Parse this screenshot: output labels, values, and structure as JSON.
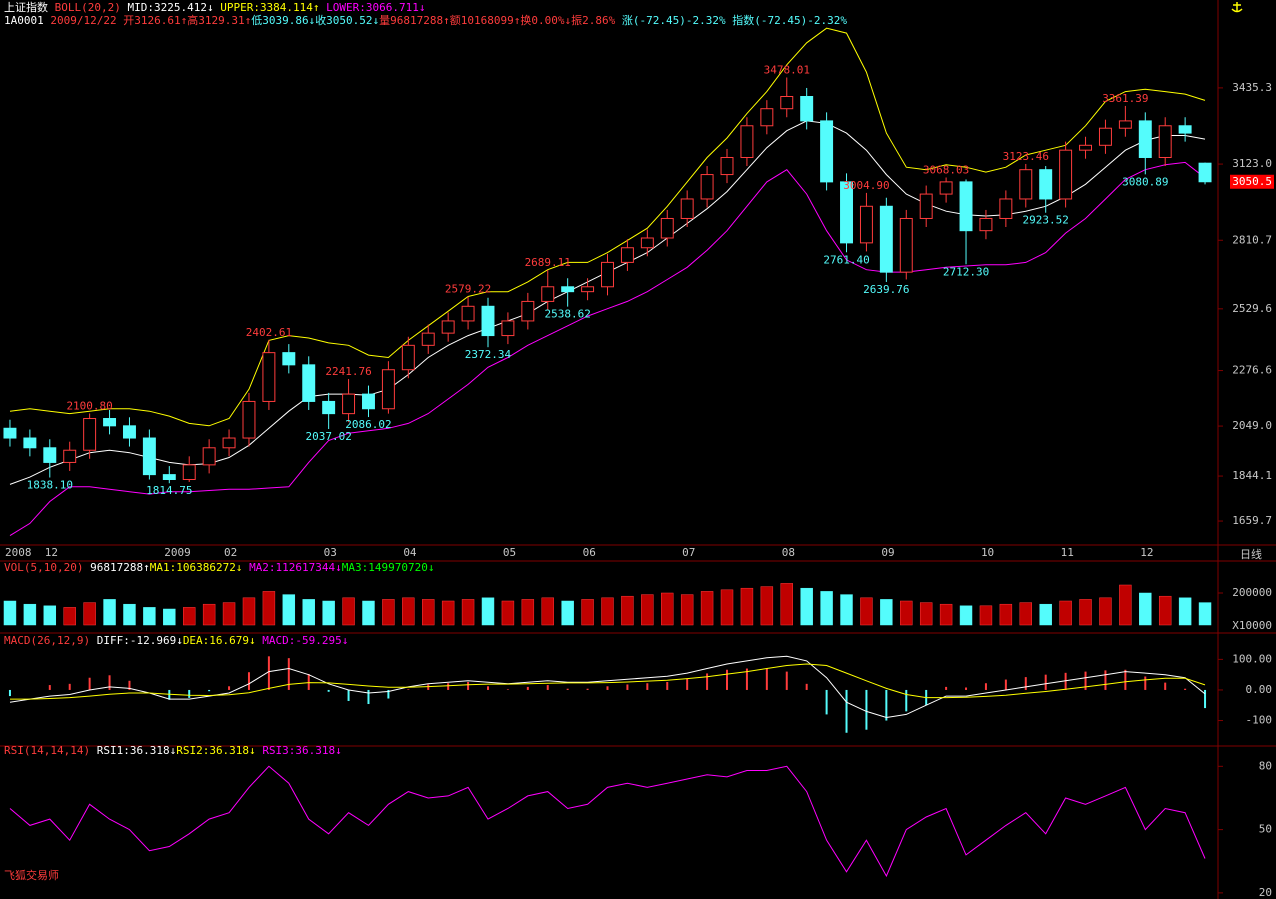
{
  "quote": [
    "1A0001",
    "2009/12/22",
    "开3126.61↑",
    "高3129.31↑",
    "低3039.86↓",
    "收3050.52↓",
    "量96817288↑",
    "额10168099↑",
    "换0.00%↓",
    "振2.86%",
    "涨(-72.45)-2.32%",
    "指数(-72.45)-2.32%"
  ],
  "footer": "飞狐交易师",
  "chart_data": [
    {
      "type": "candlestick",
      "title": "上证指数",
      "header_texts": [
        "BOLL(20,2)",
        "MID:3225.412↓",
        "UPPER:3384.114↑",
        "LOWER:3066.711↓"
      ],
      "x_label": "日线",
      "categories": [
        "2008",
        null,
        "12",
        null,
        null,
        null,
        null,
        null,
        "2009",
        null,
        null,
        "02",
        null,
        null,
        null,
        null,
        "03",
        null,
        null,
        null,
        "04",
        null,
        null,
        null,
        null,
        "05",
        null,
        null,
        null,
        "06",
        null,
        null,
        null,
        null,
        "07",
        null,
        null,
        null,
        null,
        "08",
        null,
        null,
        null,
        null,
        "09",
        null,
        null,
        null,
        null,
        "10",
        null,
        null,
        null,
        "11",
        null,
        null,
        null,
        "12",
        null,
        null,
        null
      ],
      "open": [
        2040,
        2000,
        1960,
        1900,
        1950,
        2080,
        2050,
        2000,
        1850,
        1830,
        1890,
        1960,
        2000,
        2150,
        2350,
        2300,
        2150,
        2100,
        2180,
        2120,
        2280,
        2380,
        2430,
        2480,
        2540,
        2420,
        2480,
        2560,
        2620,
        2600,
        2620,
        2720,
        2780,
        2820,
        2900,
        2980,
        3080,
        3150,
        3280,
        3350,
        3400,
        3300,
        3050,
        2800,
        2950,
        2680,
        2900,
        3000,
        3050,
        2850,
        2900,
        2980,
        3100,
        2980,
        3180,
        3200,
        3270,
        3300,
        3150,
        3280,
        3126.61
      ],
      "high": [
        2075,
        2035,
        1995,
        1985,
        2100.8,
        2115,
        2085,
        2035,
        1885,
        1925,
        1995,
        2035,
        2185,
        2402.61,
        2385,
        2335,
        2185,
        2241.76,
        2215,
        2315,
        2415,
        2465,
        2515,
        2579.22,
        2575,
        2515,
        2595,
        2689.11,
        2655,
        2655,
        2755,
        2815,
        2855,
        2935,
        3015,
        3115,
        3185,
        3315,
        3385,
        3478.01,
        3435,
        3335,
        3085,
        3004.9,
        2985,
        2935,
        3035,
        3068.03,
        3060,
        2935,
        3015,
        3123.46,
        3115,
        3215,
        3235,
        3305,
        3361.39,
        3335,
        3315,
        3315,
        3129.31
      ],
      "low": [
        1965,
        1925,
        1838.1,
        1865,
        1915,
        2015,
        1965,
        1830,
        1814.75,
        1820,
        1855,
        1925,
        1965,
        2115,
        2265,
        2115,
        2037.02,
        2065,
        2086.02,
        2100,
        2245,
        2345,
        2395,
        2445,
        2372.34,
        2385,
        2445,
        2525,
        2538.62,
        2565,
        2585,
        2685,
        2745,
        2785,
        2865,
        2945,
        3045,
        3115,
        3245,
        3315,
        3265,
        3015,
        2761.4,
        2765,
        2639.76,
        2650,
        2865,
        2965,
        2712.3,
        2815,
        2865,
        2945,
        2923.52,
        2945,
        3145,
        3165,
        3235,
        3080.89,
        3115,
        3215,
        3039.86
      ],
      "close": [
        2000,
        1960,
        1900,
        1950,
        2080,
        2050,
        2000,
        1850,
        1830,
        1890,
        1960,
        2000,
        2150,
        2350,
        2300,
        2150,
        2100,
        2180,
        2120,
        2280,
        2380,
        2430,
        2480,
        2540,
        2420,
        2480,
        2560,
        2620,
        2600,
        2620,
        2720,
        2780,
        2820,
        2900,
        2980,
        3080,
        3150,
        3280,
        3350,
        3400,
        3300,
        3050,
        2800,
        2950,
        2680,
        2900,
        3000,
        3050,
        2850,
        2900,
        2980,
        3100,
        2980,
        3180,
        3200,
        3270,
        3300,
        3150,
        3280,
        3250,
        3050.52
      ],
      "high_labels": [
        null,
        null,
        null,
        null,
        "2100.80",
        null,
        null,
        null,
        null,
        null,
        null,
        null,
        null,
        "2402.61",
        null,
        null,
        null,
        "2241.76",
        null,
        null,
        null,
        null,
        null,
        "2579.22",
        null,
        null,
        null,
        "2689.11",
        null,
        null,
        null,
        null,
        null,
        null,
        null,
        null,
        null,
        null,
        null,
        "3478.01",
        null,
        null,
        null,
        "3004.90",
        null,
        null,
        null,
        "3068.03",
        null,
        null,
        null,
        "3123.46",
        null,
        null,
        null,
        null,
        "3361.39",
        null,
        null,
        null,
        null
      ],
      "low_labels": [
        null,
        null,
        "1838.10",
        null,
        null,
        null,
        null,
        null,
        "1814.75",
        null,
        null,
        null,
        null,
        null,
        null,
        null,
        "2037.02",
        null,
        "2086.02",
        null,
        null,
        null,
        null,
        null,
        "2372.34",
        null,
        null,
        null,
        "2538.62",
        null,
        null,
        null,
        null,
        null,
        null,
        null,
        null,
        null,
        null,
        null,
        null,
        null,
        "2761.40",
        null,
        "2639.76",
        null,
        null,
        null,
        "2712.30",
        null,
        null,
        null,
        "2923.52",
        null,
        null,
        null,
        null,
        "3080.89",
        null,
        null,
        null
      ],
      "last_label": "3050.5",
      "up_color": "#ff3c3c",
      "down_color": "#54fcfc",
      "series": [
        {
          "color": "#ffffff",
          "values": [
            1810,
            1840,
            1880,
            1910,
            1940,
            1950,
            1940,
            1920,
            1900,
            1890,
            1895,
            1920,
            1970,
            2040,
            2110,
            2170,
            2180,
            2180,
            2175,
            2200,
            2260,
            2330,
            2380,
            2420,
            2450,
            2480,
            2510,
            2560,
            2600,
            2640,
            2680,
            2720,
            2760,
            2820,
            2880,
            2940,
            3010,
            3100,
            3190,
            3260,
            3300,
            3290,
            3250,
            3180,
            3080,
            3000,
            2960,
            2930,
            2915,
            2910,
            2915,
            2930,
            2950,
            2990,
            3040,
            3110,
            3180,
            3220,
            3240,
            3240,
            3225.41
          ]
        },
        {
          "color": "#ffff00",
          "values": [
            2110,
            2120,
            2110,
            2100,
            2110,
            2120,
            2120,
            2110,
            2090,
            2060,
            2050,
            2080,
            2200,
            2400,
            2420,
            2410,
            2390,
            2380,
            2340,
            2330,
            2400,
            2460,
            2520,
            2580,
            2600,
            2600,
            2640,
            2690,
            2720,
            2720,
            2760,
            2810,
            2860,
            2950,
            3050,
            3150,
            3230,
            3330,
            3420,
            3530,
            3620,
            3680,
            3660,
            3500,
            3250,
            3110,
            3100,
            3120,
            3110,
            3090,
            3110,
            3160,
            3180,
            3200,
            3280,
            3380,
            3420,
            3430,
            3420,
            3410,
            3384.11
          ]
        },
        {
          "color": "#ff00ff",
          "values": [
            1600,
            1650,
            1740,
            1800,
            1800,
            1790,
            1780,
            1770,
            1780,
            1780,
            1785,
            1790,
            1790,
            1795,
            1800,
            1900,
            1990,
            2020,
            2030,
            2040,
            2060,
            2100,
            2160,
            2220,
            2290,
            2330,
            2380,
            2420,
            2460,
            2500,
            2530,
            2560,
            2600,
            2650,
            2700,
            2770,
            2850,
            2950,
            3050,
            3100,
            3000,
            2850,
            2730,
            2690,
            2680,
            2680,
            2690,
            2700,
            2705,
            2710,
            2710,
            2720,
            2760,
            2840,
            2900,
            2980,
            3060,
            3100,
            3120,
            3130,
            3066.71
          ]
        }
      ],
      "ylim": [
        1582,
        3689
      ],
      "yticks": [
        3435.3,
        {
          "value": 3123,
          "label": "3123.0"
        },
        2810.7,
        2529.6,
        2276.6,
        {
          "value": 2049,
          "label": "2049.0"
        },
        1844.1,
        1659.7
      ]
    },
    {
      "type": "bar",
      "header_texts": [
        "VOL(5,10,20)",
        "96817288↑",
        "MA1:106386272↓",
        "MA2:112617344↓",
        "MA3:149970720↓"
      ],
      "unit_label": "X10000",
      "values": [
        150000,
        130000,
        120000,
        110000,
        140000,
        160000,
        130000,
        110000,
        100000,
        110000,
        130000,
        140000,
        170000,
        210000,
        190000,
        160000,
        150000,
        170000,
        150000,
        160000,
        170000,
        160000,
        150000,
        160000,
        170000,
        150000,
        160000,
        170000,
        150000,
        160000,
        170000,
        180000,
        190000,
        200000,
        190000,
        210000,
        220000,
        230000,
        240000,
        260000,
        230000,
        210000,
        190000,
        170000,
        160000,
        150000,
        140000,
        130000,
        120000,
        120000,
        130000,
        140000,
        130000,
        150000,
        160000,
        170000,
        250000,
        200000,
        180000,
        170000,
        140000
      ],
      "ylim": [
        0,
        312500
      ],
      "yticks": [
        200000
      ]
    },
    {
      "type": "macd",
      "header_texts": [
        "MACD(26,12,9)",
        "DIFF:-12.969↓",
        "DEA:16.679↓",
        "MACD:-59.295↓"
      ],
      "values": [
        -20,
        0,
        16,
        20,
        40,
        48,
        30,
        0,
        -32,
        -26,
        -4,
        12,
        58,
        110,
        104,
        52,
        -6,
        -36,
        -46,
        -28,
        2,
        18,
        22,
        26,
        12,
        2,
        10,
        16,
        4,
        4,
        12,
        18,
        22,
        26,
        36,
        54,
        66,
        70,
        70,
        60,
        20,
        -80,
        -140,
        -130,
        -100,
        -70,
        -50,
        10,
        8,
        22,
        34,
        42,
        50,
        56,
        60,
        64,
        66,
        44,
        24,
        4,
        -59.295
      ],
      "series": [
        {
          "color": "#ffffff",
          "values": [
            -40,
            -30,
            -20,
            -15,
            0,
            10,
            5,
            -10,
            -30,
            -30,
            -20,
            -10,
            20,
            60,
            70,
            50,
            20,
            0,
            -10,
            -5,
            10,
            20,
            25,
            30,
            25,
            20,
            25,
            30,
            25,
            25,
            30,
            35,
            40,
            45,
            55,
            70,
            85,
            95,
            105,
            110,
            95,
            40,
            -40,
            -70,
            -90,
            -80,
            -50,
            -20,
            -20,
            -10,
            0,
            10,
            20,
            30,
            40,
            50,
            60,
            55,
            50,
            40,
            -12.969
          ]
        },
        {
          "color": "#ffff00",
          "values": [
            -30,
            -30,
            -28,
            -25,
            -20,
            -14,
            -10,
            -10,
            -14,
            -17,
            -18,
            -16,
            -9,
            5,
            18,
            24,
            23,
            18,
            13,
            9,
            9,
            11,
            14,
            17,
            19,
            19,
            20,
            22,
            23,
            23,
            24,
            26,
            29,
            32,
            37,
            43,
            52,
            60,
            70,
            80,
            85,
            80,
            55,
            30,
            5,
            -15,
            -25,
            -25,
            -24,
            -21,
            -17,
            -11,
            -5,
            2,
            10,
            18,
            27,
            33,
            38,
            38,
            16.679
          ]
        }
      ],
      "ylim": [
        -180,
        147
      ],
      "yticks": [
        {
          "value": 100,
          "label": "100.00"
        },
        {
          "value": 0,
          "label": "0.00"
        },
        -100
      ]
    },
    {
      "type": "line",
      "header_texts": [
        "RSI(14,14,14)",
        "RSI1:36.318↓",
        "RSI2:36.318↓",
        "RSI3:36.318↓"
      ],
      "series": [
        {
          "color": "#ff00ff",
          "values": [
            60,
            52,
            55,
            45,
            62,
            55,
            50,
            40,
            42,
            48,
            55,
            58,
            70,
            80,
            72,
            55,
            48,
            58,
            52,
            62,
            68,
            65,
            66,
            70,
            55,
            60,
            66,
            68,
            60,
            62,
            70,
            72,
            70,
            72,
            74,
            76,
            75,
            78,
            78,
            80,
            68,
            45,
            30,
            45,
            28,
            50,
            56,
            60,
            38,
            45,
            52,
            58,
            48,
            65,
            62,
            66,
            70,
            50,
            60,
            58,
            36.318
          ]
        }
      ],
      "ylim": [
        19,
        83
      ],
      "yticks": [
        80,
        50,
        20
      ]
    }
  ]
}
